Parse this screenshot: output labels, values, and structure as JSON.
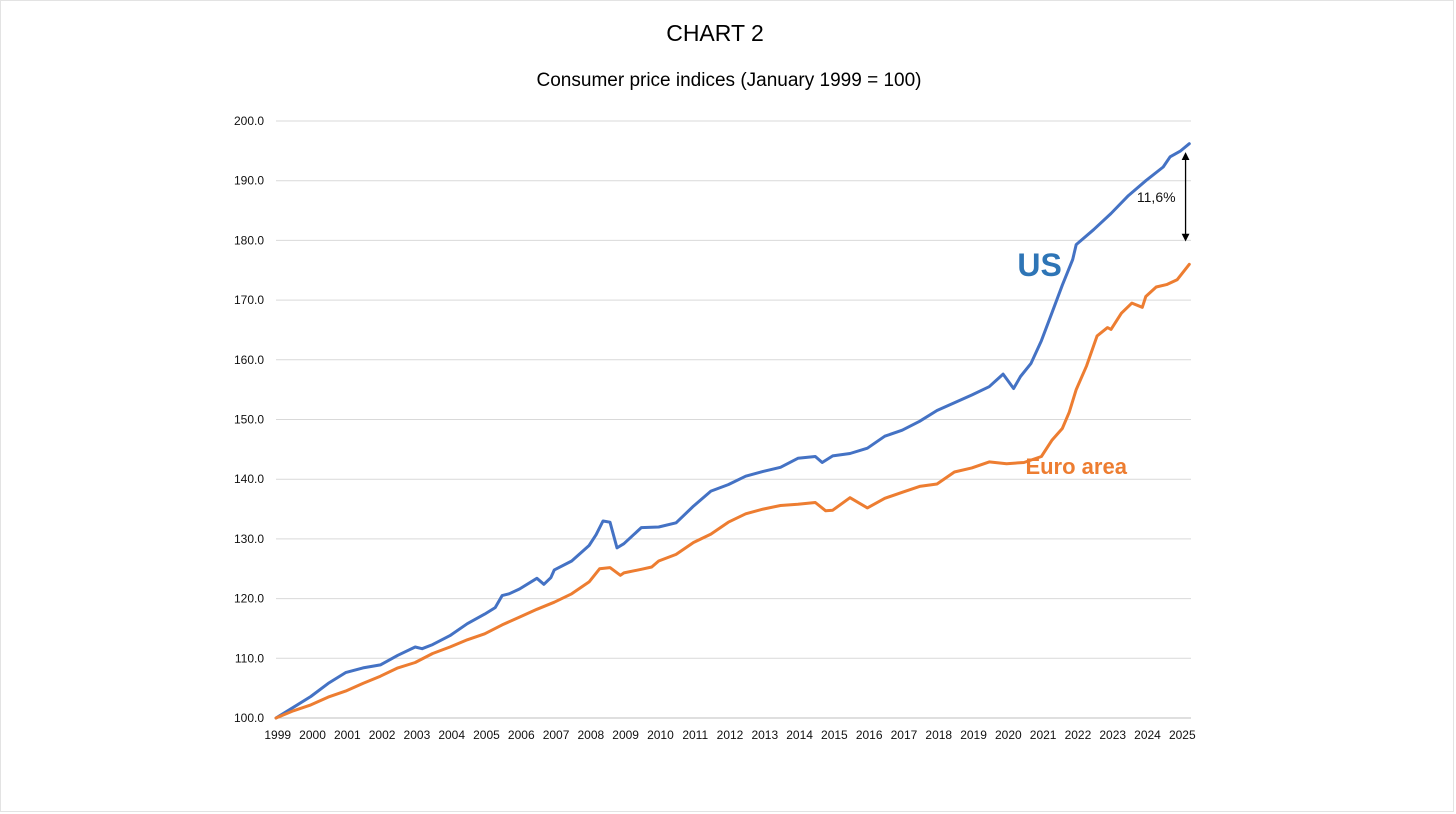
{
  "chart_data": {
    "type": "line",
    "title": "CHART 2",
    "subtitle": "Consumer price indices (January 1999 = 100)",
    "xlabel": "",
    "ylabel": "",
    "ylim": [
      100,
      200
    ],
    "yticks": [
      "100.0",
      "110.0",
      "120.0",
      "130.0",
      "140.0",
      "150.0",
      "160.0",
      "170.0",
      "180.0",
      "190.0",
      "200.0"
    ],
    "xlim": [
      1999.0,
      2025.3
    ],
    "categories": [
      "1999",
      "2000",
      "2001",
      "2002",
      "2003",
      "2004",
      "2005",
      "2006",
      "2007",
      "2008",
      "2009",
      "2010",
      "2011",
      "2012",
      "2013",
      "2014",
      "2015",
      "2016",
      "2017",
      "2018",
      "2019",
      "2020",
      "2021",
      "2022",
      "2023",
      "2024",
      "2025"
    ],
    "grid": true,
    "series": [
      {
        "name": "US",
        "color": "#4472c4",
        "label_color": "#2e75b6",
        "x": [
          1999.0,
          1999.5,
          2000.0,
          2000.5,
          2001.0,
          2001.5,
          2002.0,
          2002.5,
          2003.0,
          2003.2,
          2003.5,
          2004.0,
          2004.5,
          2005.0,
          2005.3,
          2005.5,
          2005.7,
          2006.0,
          2006.5,
          2006.7,
          2006.9,
          2007.0,
          2007.5,
          2008.0,
          2008.2,
          2008.4,
          2008.6,
          2008.8,
          2009.0,
          2009.5,
          2010.0,
          2010.5,
          2011.0,
          2011.5,
          2012.0,
          2012.5,
          2013.0,
          2013.5,
          2014.0,
          2014.5,
          2014.7,
          2015.0,
          2015.5,
          2016.0,
          2016.5,
          2017.0,
          2017.5,
          2018.0,
          2018.5,
          2019.0,
          2019.5,
          2019.9,
          2020.2,
          2020.4,
          2020.7,
          2021.0,
          2021.3,
          2021.6,
          2021.9,
          2022.0,
          2022.5,
          2023.0,
          2023.5,
          2024.0,
          2024.5,
          2024.7,
          2025.0,
          2025.25
        ],
        "values": [
          100.0,
          101.8,
          103.6,
          105.8,
          107.6,
          108.4,
          108.9,
          110.5,
          111.9,
          111.6,
          112.3,
          113.8,
          115.8,
          117.4,
          118.5,
          120.5,
          120.8,
          121.6,
          123.4,
          122.4,
          123.5,
          124.8,
          126.3,
          128.9,
          130.7,
          133.0,
          132.8,
          128.5,
          129.2,
          131.9,
          132.0,
          132.7,
          135.5,
          138.0,
          139.1,
          140.5,
          141.3,
          142.0,
          143.5,
          143.8,
          142.8,
          143.9,
          144.3,
          145.2,
          147.2,
          148.2,
          149.7,
          151.5,
          152.8,
          154.1,
          155.5,
          157.6,
          155.2,
          157.2,
          159.4,
          163.2,
          167.8,
          172.5,
          176.8,
          179.3,
          181.8,
          184.5,
          187.5,
          190.0,
          192.3,
          194.0,
          195.0,
          196.2
        ]
      },
      {
        "name": "Euro area",
        "color": "#ed7d31",
        "label_color": "#ed7d31",
        "x": [
          1999.0,
          1999.5,
          2000.0,
          2000.5,
          2001.0,
          2001.5,
          2002.0,
          2002.5,
          2003.0,
          2003.5,
          2004.0,
          2004.5,
          2005.0,
          2005.5,
          2006.0,
          2006.5,
          2007.0,
          2007.5,
          2008.0,
          2008.3,
          2008.6,
          2008.9,
          2009.0,
          2009.5,
          2009.8,
          2010.0,
          2010.5,
          2011.0,
          2011.5,
          2012.0,
          2012.5,
          2013.0,
          2013.5,
          2014.0,
          2014.5,
          2014.8,
          2015.0,
          2015.5,
          2016.0,
          2016.5,
          2017.0,
          2017.5,
          2018.0,
          2018.5,
          2019.0,
          2019.5,
          2020.0,
          2020.5,
          2021.0,
          2021.3,
          2021.6,
          2021.8,
          2022.0,
          2022.3,
          2022.6,
          2022.9,
          2023.0,
          2023.3,
          2023.6,
          2023.9,
          2024.0,
          2024.3,
          2024.6,
          2024.9,
          2025.25
        ],
        "values": [
          100.0,
          101.2,
          102.2,
          103.5,
          104.5,
          105.8,
          107.0,
          108.4,
          109.3,
          110.8,
          111.9,
          113.1,
          114.1,
          115.6,
          116.9,
          118.2,
          119.4,
          120.8,
          122.8,
          125.0,
          125.2,
          123.9,
          124.3,
          124.9,
          125.3,
          126.3,
          127.4,
          129.4,
          130.8,
          132.8,
          134.2,
          135.0,
          135.6,
          135.8,
          136.1,
          134.7,
          134.8,
          136.9,
          135.2,
          136.8,
          137.8,
          138.8,
          139.2,
          141.2,
          141.9,
          142.9,
          142.6,
          142.8,
          143.8,
          146.5,
          148.5,
          151.2,
          155.0,
          159.0,
          164.0,
          165.4,
          165.1,
          167.8,
          169.5,
          168.8,
          170.6,
          172.2,
          172.6,
          173.4,
          176.0
        ]
      }
    ],
    "annotations": {
      "us_label": "US",
      "euro_label": "Euro area",
      "gap_label": "11,6%",
      "gap_range": [
        179.8,
        194.8
      ],
      "gap_x": 2025.0
    }
  }
}
